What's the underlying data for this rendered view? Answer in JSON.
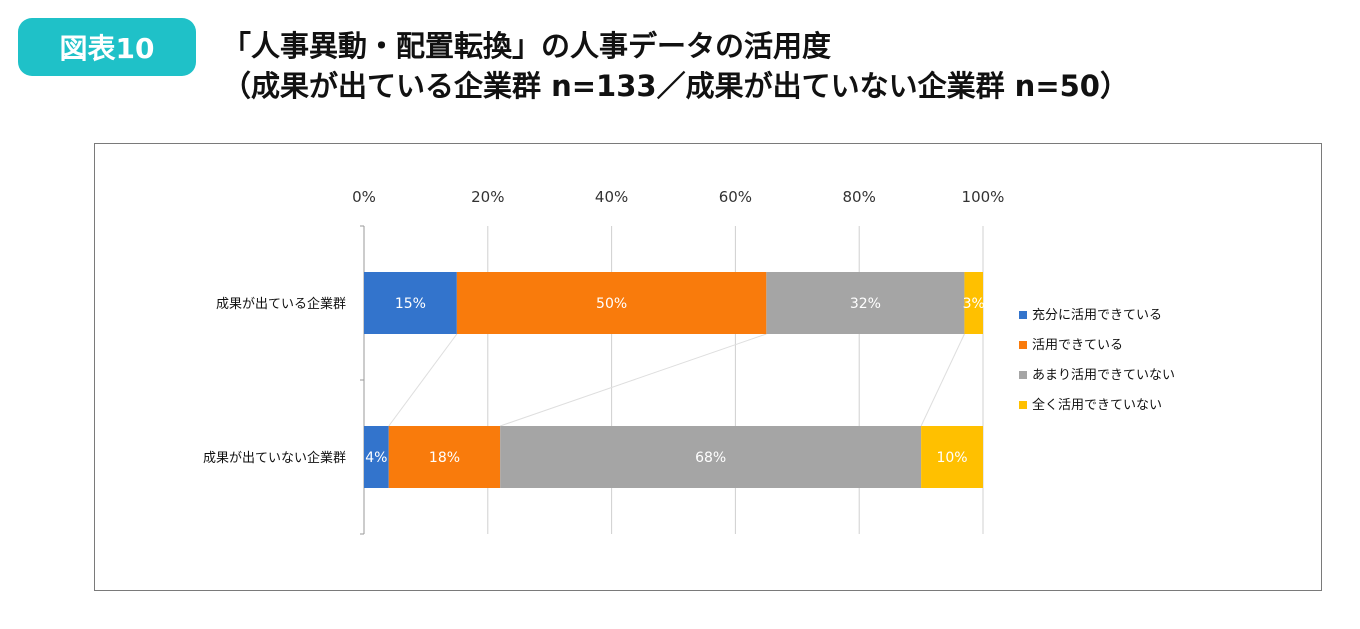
{
  "header": {
    "badge": "図表10",
    "title_line1": "「人事異動・配置転換」の人事データの活用度",
    "title_line2": "（成果が出ている企業群 n=133／成果が出ていない企業群 n=50）"
  },
  "chart_data": {
    "type": "bar",
    "orientation": "horizontal",
    "stacked": "percent",
    "categories": [
      "成果が出ている企業群",
      "成果が出ていない企業群"
    ],
    "series": [
      {
        "name": "充分に活用できている",
        "values": [
          15,
          4
        ],
        "labels": [
          "15%",
          "4%"
        ],
        "color": "#3374cc"
      },
      {
        "name": "活用できている",
        "values": [
          50,
          18
        ],
        "labels": [
          "50%",
          "18%"
        ],
        "color": "#f97b0c"
      },
      {
        "name": "あまり活用できていない",
        "values": [
          32,
          68
        ],
        "labels": [
          "32%",
          "68%"
        ],
        "color": "#a5a5a5"
      },
      {
        "name": "全く活用できていない",
        "values": [
          3,
          10
        ],
        "labels": [
          "3%",
          "10%"
        ],
        "color": "#ffc000"
      }
    ],
    "xlim": [
      0,
      100
    ],
    "x_ticks": [
      0,
      20,
      40,
      60,
      80,
      100
    ],
    "x_tick_labels": [
      "0%",
      "20%",
      "40%",
      "60%",
      "80%",
      "100%"
    ],
    "x_axis_position": "top",
    "grid": true,
    "series_lines": true,
    "legend_position": "right"
  }
}
